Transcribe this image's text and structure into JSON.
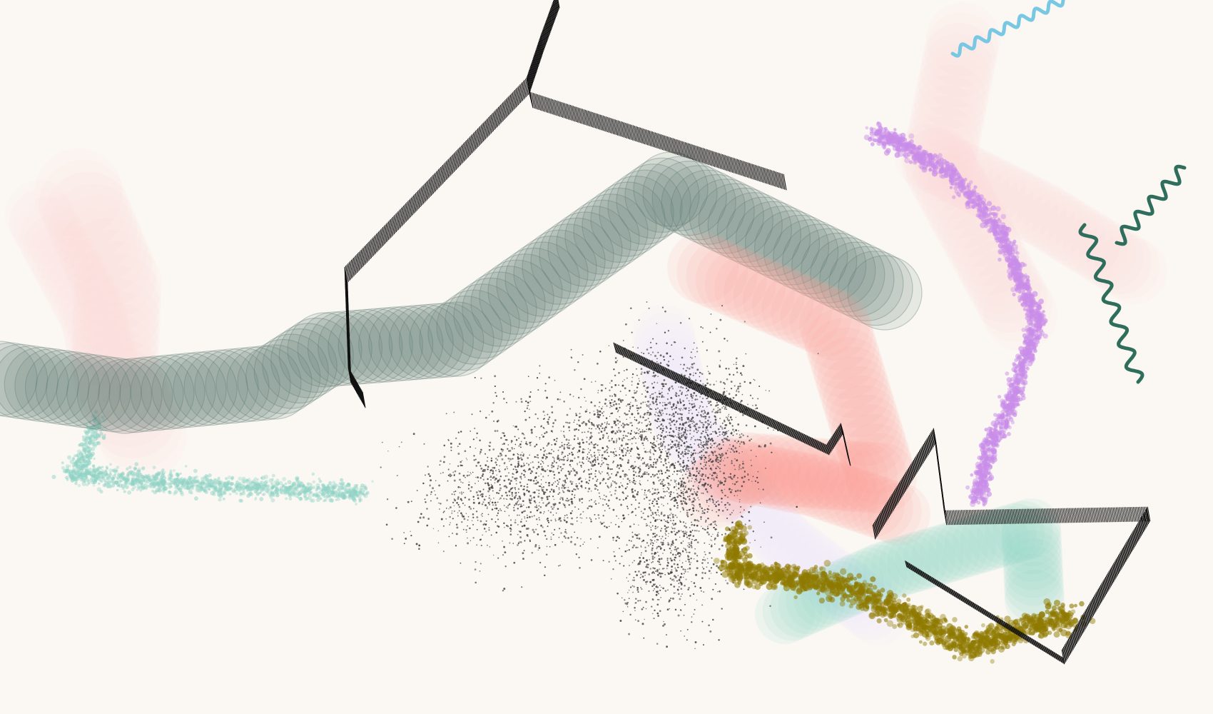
{
  "canvas": {
    "background": "#fbf8f3"
  },
  "palette": {
    "sage_dark": "#5f7b73",
    "pink_pale": "#ffdcdc",
    "salmon": "#ff9a95",
    "mint": "#8fd3c5",
    "lavender": "#f0e9ff",
    "purple": "#c98de9",
    "olive": "#8f7a00",
    "sky_blue": "#78c7e3",
    "teal_dark": "#2f6e5c",
    "ink": "#111111",
    "graphite": "#444444"
  },
  "strokes": [
    {
      "name": "pink-pale-stroke-left",
      "color": "pink_pale"
    },
    {
      "name": "mint-speckle-stroke-left",
      "color": "mint"
    },
    {
      "name": "sage-thick-stroke",
      "color": "sage_dark"
    },
    {
      "name": "pink-pale-stroke-right",
      "color": "pink_pale"
    },
    {
      "name": "purple-speckle-stroke",
      "color": "purple"
    },
    {
      "name": "salmon-thick-stroke",
      "color": "salmon"
    },
    {
      "name": "mint-thick-stroke-right",
      "color": "mint"
    },
    {
      "name": "lavender-faint-stroke",
      "color": "lavender"
    },
    {
      "name": "graphite-dot-cloud",
      "color": "graphite"
    },
    {
      "name": "olive-speckle-stroke",
      "color": "olive"
    },
    {
      "name": "black-hatched-polyline-top",
      "color": "ink"
    },
    {
      "name": "black-hatched-polyline-right",
      "color": "ink"
    },
    {
      "name": "black-hatched-line-diagonal",
      "color": "ink"
    },
    {
      "name": "sky-blue-squiggle",
      "color": "sky_blue"
    },
    {
      "name": "teal-squiggle",
      "color": "teal_dark"
    }
  ]
}
